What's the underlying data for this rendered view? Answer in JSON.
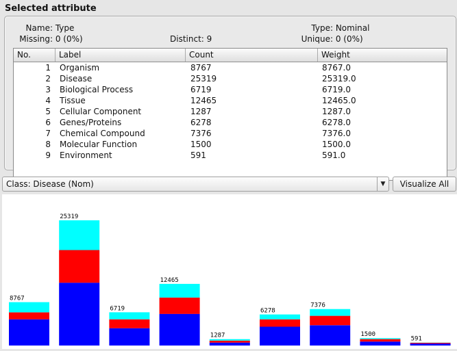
{
  "panel": {
    "title": "Selected attribute",
    "name_label": "Name:",
    "name_value": "Type",
    "missing_label": "Missing:",
    "missing_value": "0 (0%)",
    "distinct_label": "Distinct:",
    "distinct_value": "9",
    "type_label": "Type:",
    "type_value": "Nominal",
    "unique_label": "Unique:",
    "unique_value": "0 (0%)"
  },
  "table": {
    "headers": [
      "No.",
      "Label",
      "Count",
      "Weight"
    ],
    "rows": [
      {
        "no": "1",
        "label": "Organism",
        "count": "8767",
        "weight": "8767.0"
      },
      {
        "no": "2",
        "label": "Disease",
        "count": "25319",
        "weight": "25319.0"
      },
      {
        "no": "3",
        "label": "Biological Process",
        "count": "6719",
        "weight": "6719.0"
      },
      {
        "no": "4",
        "label": "Tissue",
        "count": "12465",
        "weight": "12465.0"
      },
      {
        "no": "5",
        "label": "Cellular Component",
        "count": "1287",
        "weight": "1287.0"
      },
      {
        "no": "6",
        "label": "Genes/Proteins",
        "count": "6278",
        "weight": "6278.0"
      },
      {
        "no": "7",
        "label": "Chemical Compound",
        "count": "7376",
        "weight": "7376.0"
      },
      {
        "no": "8",
        "label": "Molecular Function",
        "count": "1500",
        "weight": "1500.0"
      },
      {
        "no": "9",
        "label": "Environment",
        "count": "591",
        "weight": "591.0"
      }
    ]
  },
  "class_selector": {
    "value": "Class: Disease (Nom)",
    "arrow": "▼"
  },
  "visualize_button": "Visualize All",
  "colors": {
    "blue": "#0000ff",
    "red": "#ff0000",
    "cyan": "#00ffff"
  },
  "chart_data": {
    "type": "bar",
    "stacked": true,
    "categories": [
      "Organism",
      "Disease",
      "Biological Process",
      "Tissue",
      "Cellular Component",
      "Genes/Proteins",
      "Chemical Compound",
      "Molecular Function",
      "Environment"
    ],
    "data_labels": [
      "8767",
      "25319",
      "6719",
      "12465",
      "1287",
      "6278",
      "7376",
      "1500",
      "591"
    ],
    "series": [
      {
        "color": "#0000ff",
        "values": [
          5300,
          12700,
          3500,
          6400,
          600,
          3800,
          4100,
          800,
          400
        ]
      },
      {
        "color": "#ff0000",
        "values": [
          1400,
          6600,
          1800,
          3300,
          400,
          1500,
          1900,
          500,
          150
        ]
      },
      {
        "color": "#00ffff",
        "values": [
          2067,
          6019,
          1419,
          2765,
          287,
          978,
          1376,
          200,
          41
        ]
      }
    ],
    "ylim": [
      0,
      25319
    ]
  }
}
